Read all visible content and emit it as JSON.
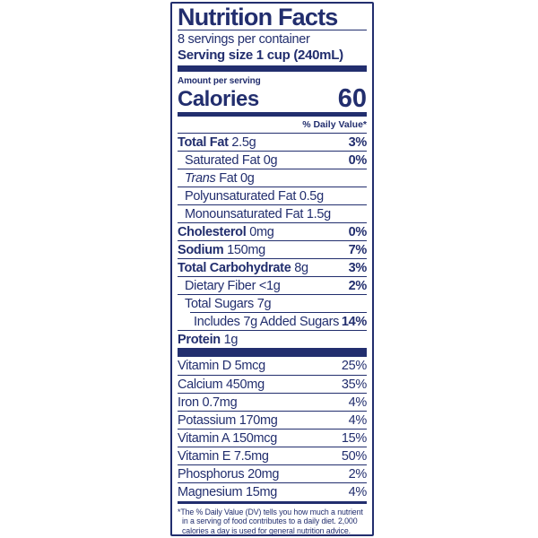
{
  "colors": {
    "label_navy": "#222e6e",
    "background": "#ffffff"
  },
  "label": {
    "title": "Nutrition Facts",
    "servings_per_container": "8 servings per container",
    "serving_size": "Serving size 1 cup (240mL)",
    "amount_per_serving": "Amount per serving",
    "calories_label": "Calories",
    "calories_value": "60",
    "daily_value_header": "% Daily Value*",
    "nutrients": [
      {
        "name": "Total Fat",
        "amount": "2.5g",
        "dv": "3%",
        "indent": 0,
        "bold": true
      },
      {
        "name": "Saturated Fat",
        "amount": "0g",
        "dv": "0%",
        "indent": 1,
        "bold": false
      },
      {
        "name_italic": "Trans",
        "name_rest": "Fat",
        "amount": "0g",
        "dv": "",
        "indent": 1,
        "bold": false
      },
      {
        "name": "Polyunsaturated Fat",
        "amount": "0.5g",
        "dv": "",
        "indent": 1,
        "bold": false
      },
      {
        "name": "Monounsaturated Fat",
        "amount": "1.5g",
        "dv": "",
        "indent": 1,
        "bold": false
      },
      {
        "name": "Cholesterol",
        "amount": "0mg",
        "dv": "0%",
        "indent": 0,
        "bold": true
      },
      {
        "name": "Sodium",
        "amount": "150mg",
        "dv": "7%",
        "indent": 0,
        "bold": true
      },
      {
        "name": "Total Carbohydrate",
        "amount": "8g",
        "dv": "3%",
        "indent": 0,
        "bold": true
      },
      {
        "name": "Dietary Fiber",
        "amount": "<1g",
        "dv": "2%",
        "indent": 1,
        "bold": false
      },
      {
        "name": "Total Sugars",
        "amount": "7g",
        "dv": "",
        "indent": 1,
        "bold": false
      },
      {
        "name": "Includes 7g Added Sugars",
        "amount": "",
        "dv": "14%",
        "indent": 2,
        "bold": false
      },
      {
        "name": "Protein",
        "amount": "1g",
        "dv": "",
        "indent": 0,
        "bold": true
      }
    ],
    "vitamins": [
      {
        "name": "Vitamin D",
        "amount": "5mcg",
        "dv": "25%"
      },
      {
        "name": "Calcium",
        "amount": "450mg",
        "dv": "35%"
      },
      {
        "name": "Iron",
        "amount": "0.7mg",
        "dv": "4%"
      },
      {
        "name": "Potassium",
        "amount": "170mg",
        "dv": "4%"
      },
      {
        "name": "Vitamin A",
        "amount": "150mcg",
        "dv": "15%"
      },
      {
        "name": "Vitamin E",
        "amount": "7.5mg",
        "dv": "50%"
      },
      {
        "name": "Phosphorus",
        "amount": "20mg",
        "dv": "2%"
      },
      {
        "name": "Magnesium",
        "amount": "15mg",
        "dv": "4%"
      }
    ],
    "footnote": "*The % Daily Value (DV) tells you how much a nutrient in a serving of food contributes to a daily diet. 2,000 calories a day is used for general nutrition advice."
  }
}
